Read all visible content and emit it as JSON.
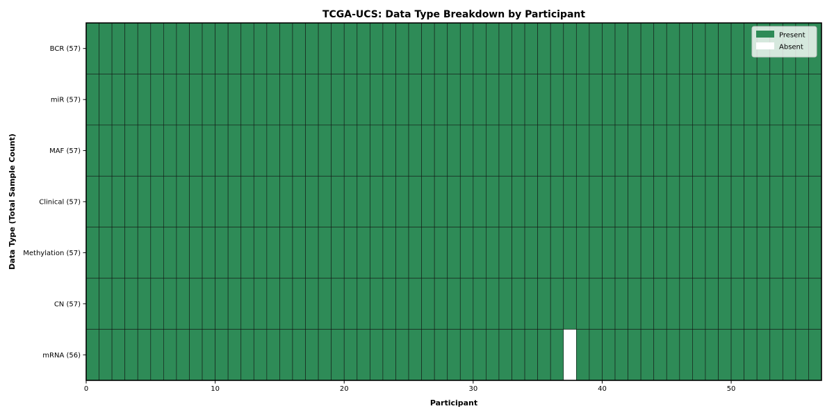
{
  "chart_data": {
    "type": "heatmap",
    "title": "TCGA-UCS: Data Type Breakdown by Participant",
    "xlabel": "Participant",
    "ylabel": "Data Type (Total Sample Count)",
    "n_participants": 57,
    "xlim": [
      0,
      57
    ],
    "x_ticks": [
      0,
      10,
      20,
      30,
      40,
      50
    ],
    "rows": [
      {
        "label": "BCR (57)",
        "total": 57,
        "absent_participants": []
      },
      {
        "label": "miR (57)",
        "total": 57,
        "absent_participants": []
      },
      {
        "label": "MAF (57)",
        "total": 57,
        "absent_participants": []
      },
      {
        "label": "Clinical (57)",
        "total": 57,
        "absent_participants": []
      },
      {
        "label": "Methylation (57)",
        "total": 57,
        "absent_participants": []
      },
      {
        "label": "CN (57)",
        "total": 57,
        "absent_participants": []
      },
      {
        "label": "mRNA (56)",
        "total": 56,
        "absent_participants": [
          37
        ]
      }
    ],
    "legend": {
      "position": "upper-right",
      "entries": [
        {
          "label": "Present",
          "color": "#2e8b57"
        },
        {
          "label": "Absent",
          "color": "#ffffff"
        }
      ]
    },
    "colors": {
      "present": "#2e8b57",
      "absent": "#ffffff",
      "cell_edge": "#111111",
      "frame": "#000000",
      "legend_edge": "#c7c7c7"
    },
    "grid": true
  }
}
